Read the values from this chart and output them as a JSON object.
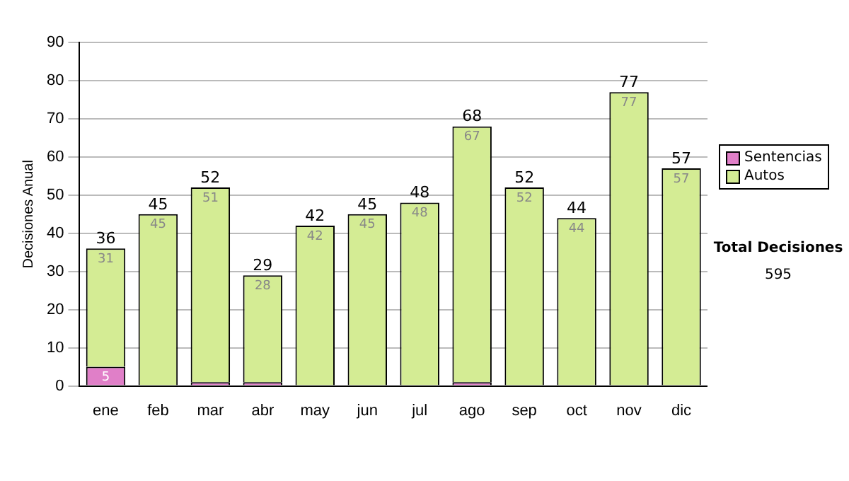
{
  "chart_data": {
    "type": "bar",
    "stacked": true,
    "ylabel": "Decisiones Anual",
    "categories": [
      "ene",
      "feb",
      "mar",
      "abr",
      "may",
      "jun",
      "jul",
      "ago",
      "sep",
      "oct",
      "nov",
      "dic"
    ],
    "series": [
      {
        "name": "Sentencias",
        "color": "#e07fc8",
        "values": [
          5,
          0,
          1,
          1,
          0,
          0,
          0,
          1,
          0,
          0,
          0,
          0
        ],
        "value_labels": [
          "5",
          null,
          null,
          null,
          null,
          null,
          null,
          null,
          null,
          null,
          null,
          null
        ]
      },
      {
        "name": "Autos",
        "color": "#d4ec94",
        "values": [
          31,
          45,
          51,
          28,
          42,
          45,
          48,
          67,
          52,
          44,
          77,
          57
        ],
        "value_labels": [
          "31",
          "45",
          "51",
          "28",
          "42",
          "45",
          "48",
          "67",
          "52",
          "44",
          "77",
          "57"
        ]
      }
    ],
    "totals": [
      "36",
      "45",
      "52",
      "29",
      "42",
      "45",
      "48",
      "68",
      "52",
      "44",
      "77",
      "57"
    ],
    "ylim": [
      0,
      90
    ],
    "yticks": [
      0,
      10,
      20,
      30,
      40,
      50,
      60,
      70,
      80,
      90
    ],
    "grid": "y",
    "legend": "right",
    "annotations": [
      "Total Decisiones",
      "595"
    ]
  }
}
